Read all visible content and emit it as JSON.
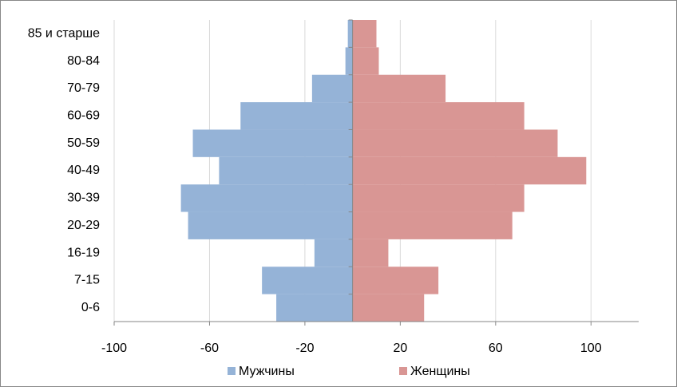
{
  "chart_data": {
    "type": "bar",
    "orientation": "horizontal",
    "categories": [
      "0-6",
      "7-15",
      "16-19",
      "20-29",
      "30-39",
      "40-49",
      "50-59",
      "60-69",
      "70-79",
      "80-84",
      "85 и старше"
    ],
    "series": [
      {
        "name": "Мужчины",
        "color": "#95b3d7",
        "values": [
          -32,
          -38,
          -16,
          -69,
          -72,
          -56,
          -67,
          -47,
          -17,
          -3,
          -2
        ]
      },
      {
        "name": "Женщины",
        "color": "#d99694",
        "values": [
          30,
          36,
          15,
          67,
          72,
          98,
          86,
          72,
          39,
          11,
          10
        ]
      }
    ],
    "xlim": [
      -100,
      120
    ],
    "xticks": [
      -100,
      -60,
      -20,
      20,
      60,
      100
    ],
    "grid": true,
    "legend": "bottom"
  }
}
